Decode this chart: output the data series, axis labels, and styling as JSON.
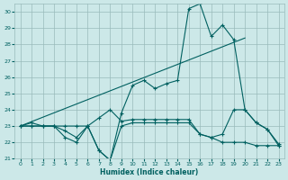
{
  "xlabel": "Humidex (Indice chaleur)",
  "xlim": [
    -0.5,
    23.5
  ],
  "ylim": [
    21,
    30.5
  ],
  "yticks": [
    21,
    22,
    23,
    24,
    25,
    26,
    27,
    28,
    29,
    30
  ],
  "xticks": [
    0,
    1,
    2,
    3,
    4,
    5,
    6,
    7,
    8,
    9,
    10,
    11,
    12,
    13,
    14,
    15,
    16,
    17,
    18,
    19,
    20,
    21,
    22,
    23
  ],
  "bg_color": "#cce8e8",
  "grid_color": "#99bbbb",
  "line_color": "#006060",
  "line1_x": [
    0,
    1,
    2,
    3,
    4,
    5,
    6,
    7,
    8,
    9,
    10,
    11,
    12,
    13,
    14,
    15,
    16,
    17,
    18,
    19,
    20,
    21,
    22,
    23
  ],
  "line1_y": [
    23.0,
    23.2,
    23.0,
    23.0,
    22.7,
    22.3,
    23.0,
    21.5,
    20.9,
    23.8,
    25.5,
    25.8,
    25.3,
    25.6,
    25.8,
    30.2,
    30.5,
    28.5,
    29.2,
    28.3,
    24.0,
    23.2,
    22.8,
    21.8
  ],
  "line2_x": [
    0,
    1,
    2,
    3,
    4,
    5,
    6,
    7,
    8,
    9,
    10,
    11,
    12,
    13,
    14,
    15,
    16,
    17,
    18,
    19,
    20,
    21,
    22,
    23
  ],
  "line2_y": [
    23.0,
    23.0,
    23.0,
    23.0,
    23.0,
    23.0,
    23.0,
    23.5,
    24.0,
    23.3,
    23.4,
    23.4,
    23.4,
    23.4,
    23.4,
    23.4,
    22.5,
    22.3,
    22.5,
    24.0,
    24.0,
    23.2,
    22.8,
    21.9
  ],
  "line3_x": [
    0,
    1,
    2,
    3,
    4,
    5,
    6,
    7,
    8,
    9,
    10,
    11,
    12,
    13,
    14,
    15,
    16,
    17,
    18,
    19,
    20,
    21,
    22,
    23
  ],
  "line3_y": [
    23.0,
    23.0,
    23.0,
    23.0,
    22.3,
    22.0,
    23.0,
    21.5,
    20.9,
    23.0,
    23.2,
    23.2,
    23.2,
    23.2,
    23.2,
    23.2,
    22.5,
    22.3,
    22.0,
    22.0,
    22.0,
    21.8,
    21.8,
    21.8
  ],
  "line4_x": [
    0,
    20
  ],
  "line4_y": [
    23.0,
    28.4
  ]
}
